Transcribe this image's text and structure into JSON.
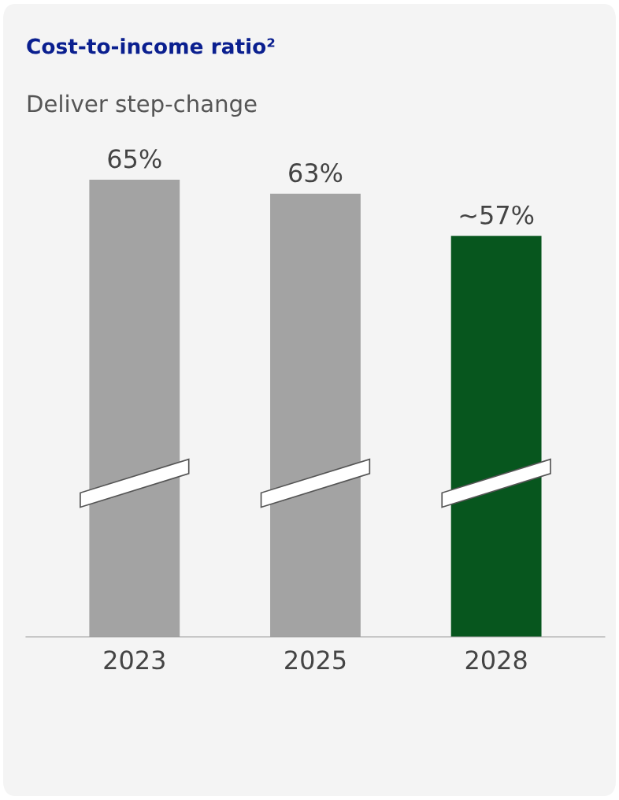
{
  "chart_data": {
    "type": "bar",
    "title": "Cost-to-income ratio²",
    "subtitle": "Deliver step-change",
    "categories": [
      "2023",
      "2025",
      "2028"
    ],
    "values": [
      65,
      63,
      57
    ],
    "colors": [
      "#a3a3a3",
      "#a3a3a3",
      "#07561e"
    ],
    "value_labels": [
      "65%",
      "63%",
      "~57%"
    ],
    "grid": false,
    "legend": false,
    "tick_labels": "x"
  }
}
